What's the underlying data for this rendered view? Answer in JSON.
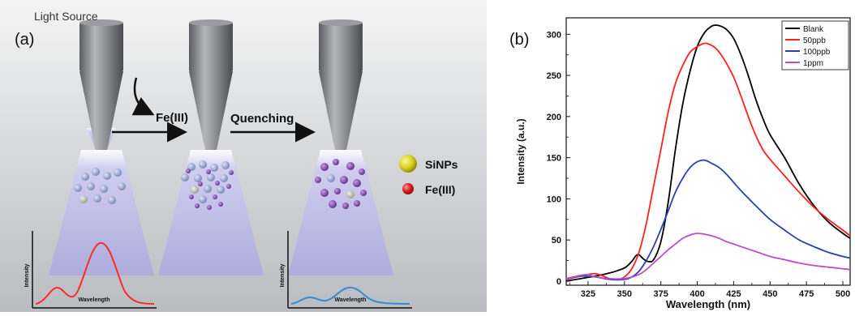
{
  "panel_a": {
    "label": "(a)",
    "light_source_label": "Light Source",
    "fe_label": "Fe(III)",
    "quenching_label": "Quenching",
    "legend": [
      {
        "label": "SiNPs",
        "color": "#d8d21c"
      },
      {
        "label": "Fe(III)",
        "color": "#e11b1b"
      }
    ],
    "inset_ylabel": "Intensity",
    "inset_xlabel": "Wavelength",
    "colors": {
      "before_curve": "#ff2a2a",
      "after_curve": "#2f8fd0",
      "beam": "#b3b1e6",
      "particle_blue": "#8a96c8",
      "particle_purple": "#7a3fa8"
    }
  },
  "chart_data": {
    "type": "line",
    "panel_label": "(b)",
    "xlabel": "Wavelength (nm)",
    "ylabel": "Intensity (a.u.)",
    "xlim": [
      310,
      505
    ],
    "ylim": [
      -5,
      320
    ],
    "x_ticks": [
      325,
      350,
      375,
      400,
      425,
      450,
      475,
      500
    ],
    "y_ticks": [
      0,
      50,
      100,
      150,
      200,
      250,
      300
    ],
    "grid": false,
    "legend_position": "top-right",
    "series": [
      {
        "name": "Blank",
        "color": "#000000",
        "x": [
          310,
          320,
          330,
          340,
          350,
          355,
          358,
          360,
          363,
          366,
          370,
          375,
          380,
          385,
          390,
          395,
          400,
          405,
          410,
          413,
          416,
          420,
          425,
          430,
          435,
          440,
          445,
          450,
          460,
          470,
          480,
          490,
          500,
          505
        ],
        "y": [
          0,
          3,
          6,
          10,
          16,
          24,
          31,
          32,
          27,
          24,
          26,
          48,
          95,
          160,
          215,
          255,
          285,
          302,
          310,
          311,
          310,
          306,
          295,
          275,
          250,
          222,
          198,
          178,
          150,
          118,
          92,
          72,
          58,
          52
        ]
      },
      {
        "name": "50ppb",
        "color": "#ff2020",
        "x": [
          310,
          320,
          330,
          340,
          345,
          350,
          355,
          360,
          365,
          370,
          375,
          380,
          385,
          390,
          395,
          400,
          405,
          408,
          412,
          416,
          420,
          425,
          430,
          435,
          440,
          445,
          450,
          460,
          470,
          480,
          490,
          500,
          505
        ],
        "y": [
          2,
          6,
          9,
          3,
          2,
          5,
          15,
          35,
          70,
          115,
          160,
          205,
          240,
          262,
          278,
          285,
          289,
          288,
          284,
          276,
          265,
          248,
          225,
          200,
          178,
          160,
          148,
          128,
          108,
          90,
          75,
          62,
          55
        ]
      },
      {
        "name": "100ppb",
        "color": "#2c3fb0",
        "x": [
          310,
          320,
          330,
          340,
          350,
          355,
          360,
          365,
          370,
          375,
          380,
          385,
          390,
          395,
          400,
          405,
          410,
          415,
          420,
          425,
          430,
          440,
          450,
          460,
          470,
          480,
          490,
          500,
          505
        ],
        "y": [
          3,
          6,
          5,
          2,
          2,
          5,
          12,
          25,
          42,
          63,
          85,
          108,
          125,
          138,
          145,
          147,
          143,
          138,
          130,
          120,
          110,
          92,
          75,
          62,
          50,
          42,
          35,
          30,
          28
        ]
      },
      {
        "name": "1ppm",
        "color": "#c04ac8",
        "x": [
          310,
          320,
          325,
          330,
          340,
          350,
          360,
          365,
          370,
          375,
          380,
          385,
          390,
          395,
          400,
          405,
          410,
          415,
          420,
          425,
          430,
          440,
          450,
          460,
          470,
          480,
          490,
          500,
          505
        ],
        "y": [
          3,
          7,
          8,
          5,
          3,
          3,
          8,
          14,
          22,
          30,
          38,
          45,
          52,
          56,
          58,
          57,
          55,
          52,
          48,
          45,
          42,
          36,
          30,
          26,
          22,
          19,
          17,
          15,
          14
        ]
      }
    ]
  }
}
